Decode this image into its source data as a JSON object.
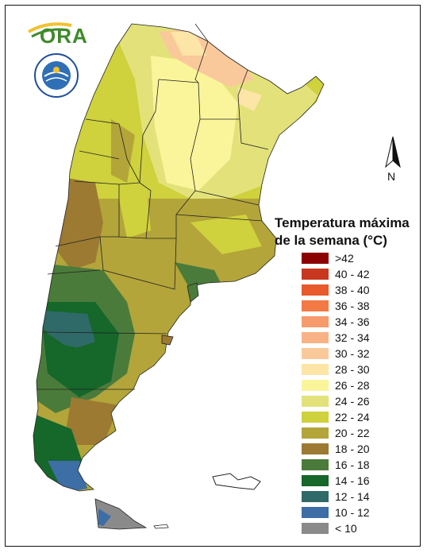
{
  "logo": {
    "text": "ORA",
    "seal_text": "SERVICIO METEOROLÓGICO NACIONAL · ARGENTINA"
  },
  "legend": {
    "title_line1": "Temperatura máxima",
    "title_line2": "de la semana (°C)",
    "items": [
      {
        "label": ">42",
        "color": "#8b0000"
      },
      {
        "label": "40 - 42",
        "color": "#c8371f"
      },
      {
        "label": "38 - 40",
        "color": "#e8592c"
      },
      {
        "label": "36 - 38",
        "color": "#f37a45"
      },
      {
        "label": "34 - 36",
        "color": "#f79a6c"
      },
      {
        "label": "32 - 34",
        "color": "#f8b286"
      },
      {
        "label": "30 - 32",
        "color": "#fac99b"
      },
      {
        "label": "28 - 30",
        "color": "#fce5a6"
      },
      {
        "label": "26 - 28",
        "color": "#faf59a"
      },
      {
        "label": "24 - 26",
        "color": "#e3e27a"
      },
      {
        "label": "22 - 24",
        "color": "#cfd13d"
      },
      {
        "label": "20 - 22",
        "color": "#b3a53a"
      },
      {
        "label": "18 - 20",
        "color": "#9c7a32"
      },
      {
        "label": "16 - 18",
        "color": "#4b7b3a"
      },
      {
        "label": "14 - 16",
        "color": "#15672a"
      },
      {
        "label": "12 - 14",
        "color": "#2f6a68"
      },
      {
        "label": "10 - 12",
        "color": "#3d6ea6"
      },
      {
        "label": "< 10",
        "color": "#8a8a8a"
      }
    ]
  },
  "north_arrow": {
    "label": "N"
  }
}
